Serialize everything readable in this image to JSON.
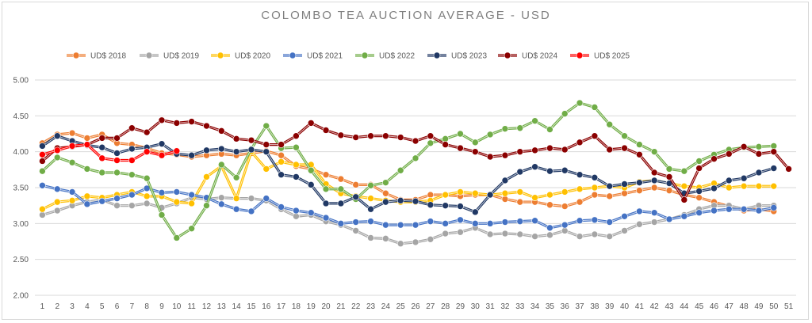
{
  "chart_data": {
    "type": "line",
    "title": "COLOMBO TEA AUCTION AVERAGE - USD",
    "xlabel": "",
    "ylabel": "",
    "ylim": [
      2.0,
      5.0
    ],
    "yticks": [
      "2.00",
      "2.50",
      "3.00",
      "3.50",
      "4.00",
      "4.50",
      "5.00"
    ],
    "categories": [
      1,
      2,
      3,
      4,
      5,
      6,
      7,
      8,
      9,
      10,
      11,
      12,
      13,
      14,
      15,
      16,
      17,
      18,
      19,
      20,
      21,
      22,
      23,
      24,
      25,
      26,
      27,
      28,
      29,
      30,
      31,
      32,
      33,
      34,
      35,
      36,
      37,
      38,
      39,
      40,
      41,
      42,
      43,
      44,
      45,
      46,
      47,
      48,
      49,
      50,
      51
    ],
    "grid": true,
    "legend_position": "top",
    "series": [
      {
        "name": "UD$  2018",
        "color": "#ED7D31",
        "values": [
          4.12,
          4.24,
          4.26,
          4.19,
          4.24,
          4.12,
          4.1,
          4.05,
          3.98,
          3.96,
          3.93,
          3.95,
          3.97,
          3.95,
          3.98,
          4.01,
          3.95,
          3.8,
          3.76,
          3.68,
          3.62,
          3.54,
          3.54,
          3.42,
          3.33,
          3.33,
          3.4,
          3.4,
          3.38,
          3.4,
          3.4,
          3.34,
          3.3,
          3.3,
          3.26,
          3.24,
          3.3,
          3.4,
          3.38,
          3.42,
          3.46,
          3.5,
          3.46,
          3.4,
          3.36,
          3.3,
          3.24,
          3.18,
          3.2,
          3.17,
          null
        ]
      },
      {
        "name": "UD$  2019",
        "color": "#A5A5A5",
        "values": [
          3.12,
          3.18,
          3.25,
          3.3,
          3.33,
          3.25,
          3.25,
          3.28,
          3.22,
          3.28,
          3.36,
          3.34,
          3.36,
          3.35,
          3.35,
          3.32,
          3.2,
          3.1,
          3.12,
          3.03,
          2.98,
          2.9,
          2.8,
          2.79,
          2.72,
          2.74,
          2.78,
          2.86,
          2.88,
          2.94,
          2.85,
          2.86,
          2.85,
          2.82,
          2.84,
          2.9,
          2.82,
          2.85,
          2.82,
          2.9,
          2.99,
          3.02,
          3.06,
          3.12,
          3.2,
          3.25,
          3.25,
          3.2,
          3.25,
          3.25,
          null
        ]
      },
      {
        "name": "UD$  2020",
        "color": "#FFC000",
        "values": [
          3.2,
          3.3,
          3.32,
          3.38,
          3.36,
          3.4,
          3.44,
          3.38,
          3.38,
          3.3,
          3.28,
          3.65,
          3.8,
          3.35,
          4.0,
          3.76,
          3.86,
          3.82,
          3.82,
          3.55,
          3.42,
          3.38,
          3.35,
          3.32,
          3.3,
          3.3,
          3.32,
          3.4,
          3.44,
          3.42,
          3.4,
          3.42,
          3.44,
          3.36,
          3.4,
          3.44,
          3.48,
          3.5,
          3.52,
          3.5,
          3.58,
          3.6,
          3.56,
          3.52,
          3.5,
          3.56,
          3.5,
          3.52,
          3.52,
          3.52,
          null
        ]
      },
      {
        "name": "UD$  2021",
        "color": "#4472C4",
        "values": [
          3.53,
          3.48,
          3.44,
          3.27,
          3.31,
          3.35,
          3.4,
          3.49,
          3.43,
          3.44,
          3.4,
          3.36,
          3.27,
          3.2,
          3.17,
          3.35,
          3.23,
          3.18,
          3.15,
          3.08,
          3.0,
          3.02,
          3.03,
          2.98,
          2.98,
          2.98,
          3.03,
          3.0,
          3.05,
          3.0,
          3.0,
          3.02,
          3.03,
          3.04,
          2.94,
          2.98,
          3.04,
          3.05,
          3.02,
          3.1,
          3.17,
          3.15,
          3.06,
          3.1,
          3.15,
          3.18,
          3.2,
          3.2,
          3.18,
          3.22,
          null
        ]
      },
      {
        "name": "UD$  2022",
        "color": "#70AD47",
        "values": [
          3.73,
          3.92,
          3.85,
          3.76,
          3.71,
          3.71,
          3.68,
          3.63,
          3.12,
          2.8,
          2.93,
          3.25,
          3.82,
          3.64,
          4.04,
          4.36,
          4.05,
          4.06,
          3.74,
          3.48,
          3.48,
          3.34,
          3.53,
          3.57,
          3.74,
          3.91,
          4.12,
          4.18,
          4.25,
          4.13,
          4.24,
          4.32,
          4.33,
          4.43,
          4.31,
          4.53,
          4.68,
          4.62,
          4.38,
          4.22,
          4.1,
          4.0,
          3.76,
          3.73,
          3.87,
          3.96,
          4.03,
          4.06,
          4.07,
          4.08,
          null
        ]
      },
      {
        "name": "UD$  2023",
        "color": "#203864",
        "values": [
          4.08,
          4.22,
          4.15,
          4.09,
          4.06,
          3.98,
          4.04,
          4.06,
          4.11,
          3.97,
          3.95,
          4.02,
          4.04,
          4.0,
          4.03,
          4.0,
          3.68,
          3.65,
          3.54,
          3.28,
          3.28,
          3.37,
          3.2,
          3.3,
          3.32,
          3.31,
          3.26,
          3.25,
          3.24,
          3.16,
          3.4,
          3.6,
          3.72,
          3.79,
          3.73,
          3.74,
          3.68,
          3.64,
          3.52,
          3.55,
          3.57,
          3.6,
          3.56,
          3.42,
          3.45,
          3.49,
          3.6,
          3.63,
          3.71,
          3.77,
          null
        ]
      },
      {
        "name": "UD$  2024",
        "color": "#8B0000",
        "values": [
          3.87,
          4.05,
          4.07,
          4.1,
          4.19,
          4.19,
          4.33,
          4.27,
          4.44,
          4.4,
          4.42,
          4.36,
          4.29,
          4.18,
          4.16,
          4.1,
          4.1,
          4.22,
          4.4,
          4.3,
          4.23,
          4.2,
          4.22,
          4.22,
          4.2,
          4.15,
          4.22,
          4.1,
          4.05,
          4.0,
          3.93,
          3.95,
          4.0,
          4.02,
          4.05,
          4.03,
          4.13,
          4.22,
          4.03,
          4.05,
          3.96,
          3.71,
          3.65,
          3.33,
          3.77,
          3.9,
          3.97,
          4.07,
          3.97,
          4.0,
          3.76
        ]
      },
      {
        "name": "UD$  2025",
        "color": "#FF0000",
        "values": [
          3.96,
          4.02,
          4.08,
          4.1,
          3.91,
          3.88,
          3.88,
          4.0,
          3.95,
          4.01,
          null,
          null,
          null,
          null,
          null,
          null,
          null,
          null,
          null,
          null,
          null,
          null,
          null,
          null,
          null,
          null,
          null,
          null,
          null,
          null,
          null,
          null,
          null,
          null,
          null,
          null,
          null,
          null,
          null,
          null,
          null,
          null,
          null,
          null,
          null,
          null,
          null,
          null,
          null,
          null,
          null
        ]
      }
    ]
  }
}
